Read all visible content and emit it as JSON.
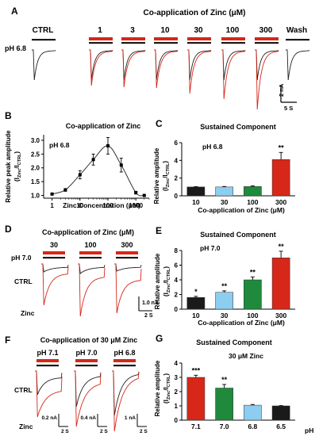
{
  "colors": {
    "red": "#d62718",
    "black": "#1a1a1a",
    "lightblue": "#8ccdf0",
    "green": "#1f8a3c",
    "trace_black": "#222222",
    "trace_red": "#d62718"
  },
  "panelA": {
    "letter": "A",
    "title": "Co-application of Zinc (μM)",
    "ph": "pH 6.8",
    "conditions": [
      "CTRL",
      "1",
      "3",
      "10",
      "30",
      "100",
      "300",
      "Wash"
    ],
    "scale_current": "2 nA",
    "scale_time": "5 S"
  },
  "panelB": {
    "letter": "B",
    "title": "Co-application of Zinc",
    "ph": "pH 6.8",
    "ylabel": "Relative peak amplitude",
    "ylabel2": "(I",
    "ylabel2_sub1": "Zinc",
    "ylabel2_mid": "/I",
    "ylabel2_sub2": "CTRL",
    "ylabel2_end": ")",
    "xlabel": "Zinc Concentration (μM)",
    "y_ticks": [
      "1.0",
      "1.5",
      "2.0",
      "2.5",
      "3.0"
    ],
    "x_ticks": [
      "1",
      "10",
      "100",
      "1000"
    ]
  },
  "panelC": {
    "letter": "C",
    "title": "Sustained Component",
    "ph": "pH 6.8",
    "xlabel": "Co-application of Zinc (μM)",
    "y_ticks": [
      "0",
      "2",
      "4",
      "6"
    ],
    "significance": "**"
  },
  "panelD": {
    "letter": "D",
    "title": "Co-application of Zinc (μM)",
    "ph": "pH 7.0",
    "conditions": [
      "30",
      "100",
      "300"
    ],
    "ctrl": "CTRL",
    "zinc": "Zinc",
    "scale_current": "1.0 nA",
    "scale_time": "2 S"
  },
  "panelE": {
    "letter": "E",
    "title": "Sustained Component",
    "ph": "pH 7.0",
    "xlabel": "Co-application of Zinc (μM)",
    "y_ticks": [
      "0",
      "2",
      "4",
      "6",
      "8"
    ],
    "significance": [
      "*",
      "**",
      "**",
      "**"
    ]
  },
  "panelF": {
    "letter": "F",
    "title": "Co-application of 30 μM Zinc",
    "ph_labels": [
      "pH 7.1",
      "pH 7.0",
      "pH 6.8"
    ],
    "ctrl": "CTRL",
    "zinc": "Zinc",
    "scales": [
      {
        "current": "0.2 nA",
        "time": "2 S"
      },
      {
        "current": "0.4 nA",
        "time": "2 S"
      },
      {
        "current": "1 nA",
        "time": "2 S"
      }
    ]
  },
  "panelG": {
    "letter": "G",
    "title": "Sustained Component",
    "subtitle": "30 μM Zinc",
    "xlabel": "pH",
    "y_ticks": [
      "0",
      "1",
      "2",
      "3",
      "4"
    ],
    "significance": [
      "***",
      "**"
    ]
  },
  "ylabel_rel": "Relative amplitude",
  "chart_data": [
    {
      "panel": "B",
      "type": "line",
      "x": [
        1,
        3,
        10,
        30,
        100,
        300,
        1000,
        2000
      ],
      "y": [
        1.05,
        1.2,
        1.75,
        2.3,
        2.8,
        2.1,
        1.1,
        1.0
      ],
      "error": [
        0.02,
        0.05,
        0.15,
        0.2,
        0.3,
        0.25,
        0.05,
        0.02
      ],
      "xscale": "log",
      "xlim": [
        0.5,
        3000
      ],
      "ylim": [
        0.9,
        3.2
      ],
      "title": "Co-application of Zinc",
      "xlabel": "Zinc Concentration (μM)",
      "ylabel": "Relative peak amplitude (I Zinc / I CTRL)"
    },
    {
      "panel": "C",
      "type": "bar",
      "categories": [
        "10",
        "30",
        "100",
        "300"
      ],
      "values": [
        1.0,
        1.0,
        1.05,
        4.1
      ],
      "error": [
        0.03,
        0.05,
        0.08,
        0.8
      ],
      "colors": [
        "black",
        "lightblue",
        "green",
        "red"
      ],
      "ylim": [
        0,
        6
      ],
      "title": "Sustained Component",
      "xlabel": "Co-application of Zinc (μM)",
      "ylabel": "Relative amplitude (I Zinc / I CTRL)"
    },
    {
      "panel": "E",
      "type": "bar",
      "categories": [
        "10",
        "30",
        "100",
        "300"
      ],
      "values": [
        1.6,
        2.3,
        4.0,
        7.0
      ],
      "error": [
        0.15,
        0.2,
        0.4,
        0.9
      ],
      "colors": [
        "black",
        "lightblue",
        "green",
        "red"
      ],
      "ylim": [
        0,
        8
      ],
      "title": "Sustained Component",
      "xlabel": "Co-application of Zinc (μM)",
      "ylabel": "Relative amplitude (I Zinc / I CTRL)"
    },
    {
      "panel": "G",
      "type": "bar",
      "categories": [
        "7.1",
        "7.0",
        "6.8",
        "6.5"
      ],
      "values": [
        3.0,
        2.25,
        1.05,
        1.0
      ],
      "error": [
        0.15,
        0.25,
        0.05,
        0.02
      ],
      "colors": [
        "red",
        "green",
        "lightblue",
        "black"
      ],
      "ylim": [
        0,
        4
      ],
      "title": "Sustained Component",
      "xlabel": "pH",
      "ylabel": "Relative amplitude (I Zinc / I CTRL)"
    }
  ]
}
